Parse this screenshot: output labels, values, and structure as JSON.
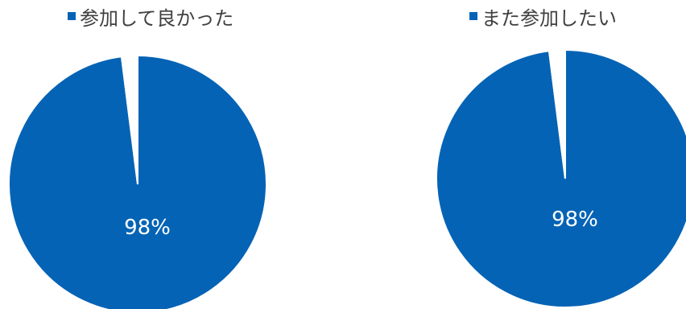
{
  "chart_data": [
    {
      "type": "pie",
      "legend": [
        "参加して良かった"
      ],
      "values": [
        98,
        2
      ],
      "data_labels": [
        "98%"
      ],
      "colors": [
        "#0563B5",
        "#FFFFFF"
      ]
    },
    {
      "type": "pie",
      "legend": [
        "また参加したい"
      ],
      "values": [
        98,
        2
      ],
      "data_labels": [
        "98%"
      ],
      "colors": [
        "#0563B5",
        "#FFFFFF"
      ]
    }
  ]
}
